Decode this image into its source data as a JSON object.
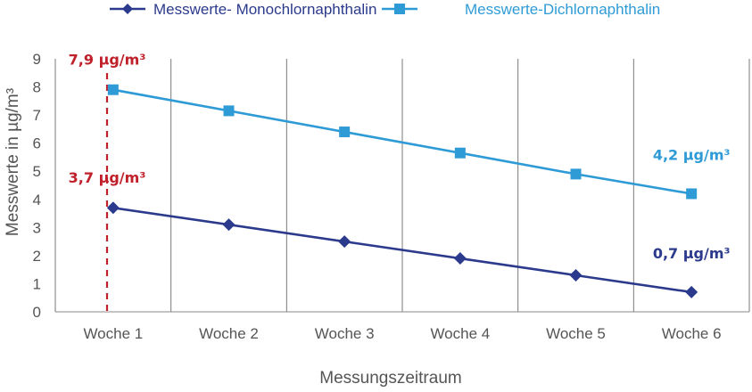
{
  "chart_data": {
    "type": "line",
    "categories": [
      "Woche 1",
      "Woche 2",
      "Woche 3",
      "Woche 4",
      "Woche 5",
      "Woche 6"
    ],
    "series": [
      {
        "name": "Messwerte- Monochlornaphthalin",
        "values": [
          3.7,
          3.1,
          2.5,
          1.9,
          1.3,
          0.7
        ],
        "color": "#2b3a8c",
        "marker": "diamond"
      },
      {
        "name": "Messwerte-Dichlornaphthalin",
        "values": [
          7.9,
          7.15,
          6.4,
          5.65,
          4.9,
          4.2
        ],
        "color": "#2f9bd6",
        "marker": "square"
      }
    ],
    "xlabel": "Messungszeitraum",
    "ylabel": "Messwerte in µg/m³",
    "ylim": [
      0,
      9
    ],
    "yticks": [
      "0",
      "1",
      "2",
      "3",
      "4",
      "5",
      "6",
      "7",
      "8",
      "9"
    ],
    "grid": "vertical",
    "legend_position": "top",
    "reference_line": {
      "category": "Woche 1",
      "color": "#c0202a",
      "style": "dashed"
    },
    "annotations": [
      {
        "text": "7,9 µg/m³",
        "category": "Woche 1",
        "series": "Messwerte-Dichlornaphthalin",
        "color": "#c0202a"
      },
      {
        "text": "3,7 µg/m³",
        "category": "Woche 1",
        "series": "Messwerte- Monochlornaphthalin",
        "color": "#c0202a"
      },
      {
        "text": "4,2 µg/m³",
        "category": "Woche 6",
        "series": "Messwerte-Dichlornaphthalin",
        "color": "#2f9bd6"
      },
      {
        "text": "0,7 µg/m³",
        "category": "Woche 6",
        "series": "Messwerte- Monochlornaphthalin",
        "color": "#2b3a8c"
      }
    ]
  }
}
